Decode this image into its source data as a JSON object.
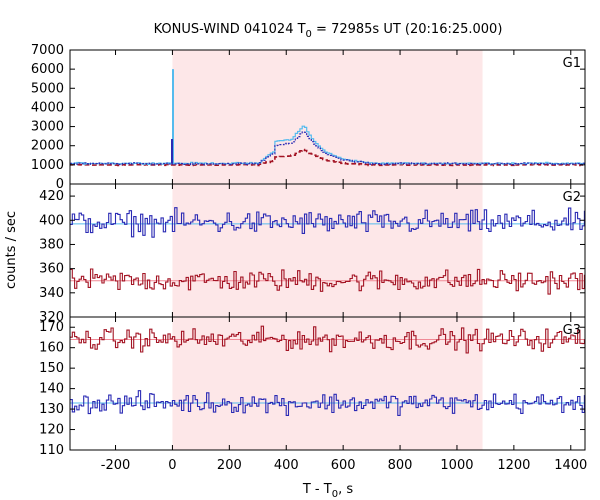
{
  "chart_data": {
    "type": "line",
    "title_main": "KONUS-WIND 041024 T",
    "title_sub": "0",
    "title_rest": " = 72985s UT (20:16:25.000)",
    "xlabel_main": "T - T",
    "xlabel_sub": "0",
    "xlabel_rest": ", s",
    "ylabel": "counts / sec",
    "xlim": [
      -360,
      1450
    ],
    "x_ticks": [
      -200,
      0,
      200,
      400,
      600,
      800,
      1000,
      1200,
      1400
    ],
    "shaded_interval": [
      0,
      1090
    ],
    "colors": {
      "shade": "#fde7e8",
      "blue": "#2a2ab4",
      "cyan": "#55bbee",
      "red": "#a31424",
      "pink": "#f08a96",
      "axis": "#000000"
    },
    "panels": [
      {
        "label": "G1",
        "ylim": [
          0,
          7000
        ],
        "y_ticks": [
          0,
          1000,
          2000,
          3000,
          4000,
          5000,
          6000,
          7000
        ],
        "background_levels": {
          "blue": 1060,
          "red": 1000
        },
        "spike": {
          "x": 2,
          "cyan": 6000,
          "blue": 2350
        },
        "pulse": {
          "start": 300,
          "peak": 460,
          "end": 680,
          "cyan_peak": 3050,
          "blue_peak": 2900,
          "red_peak": 2250,
          "cyan_bump": 2400,
          "blue_bump": 2250,
          "red_bump": 1750
        },
        "noise": {
          "blue": 45,
          "cyan": 40,
          "red": 30
        }
      },
      {
        "label": "G2",
        "ylim": [
          320,
          430
        ],
        "y_ticks": [
          320,
          340,
          360,
          380,
          400,
          420
        ],
        "series": [
          {
            "color": "blue",
            "level": 398,
            "noise": 6
          },
          {
            "color": "red",
            "level": 350,
            "noise": 5.5
          }
        ],
        "fit_lines": [
          {
            "color": "cyan",
            "level": 397
          },
          {
            "color": "pink",
            "level": 350
          }
        ]
      },
      {
        "label": "G3",
        "ylim": [
          110,
          175
        ],
        "y_ticks": [
          110,
          120,
          130,
          140,
          150,
          160,
          170
        ],
        "series": [
          {
            "color": "red",
            "level": 164,
            "noise": 3.2
          },
          {
            "color": "blue",
            "level": 133,
            "noise": 3
          }
        ],
        "fit_lines": [
          {
            "color": "pink",
            "level": 164
          },
          {
            "color": "cyan",
            "level": 133
          }
        ]
      }
    ]
  }
}
